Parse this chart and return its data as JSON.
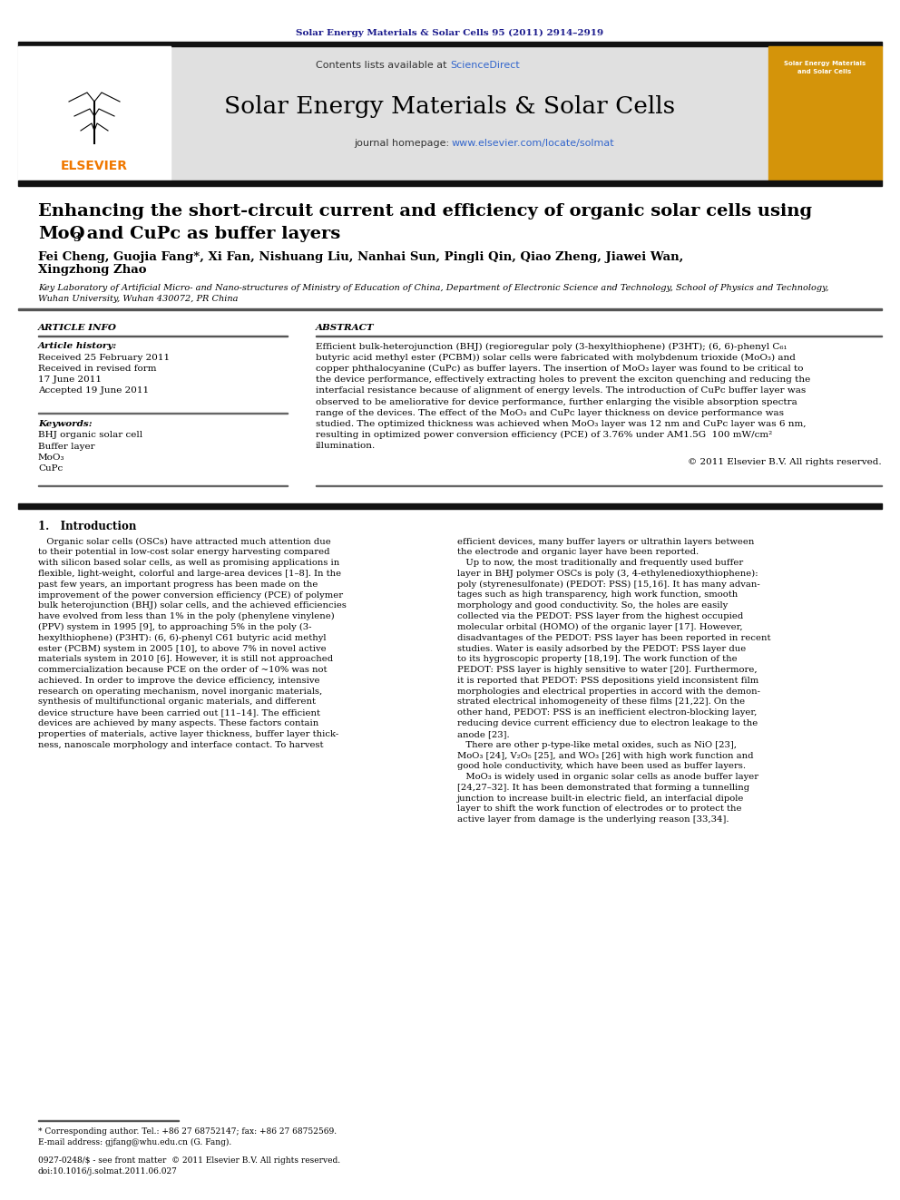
{
  "journal_ref": "Solar Energy Materials & Solar Cells 95 (2011) 2914–2919",
  "journal_ref_color": "#1a1a8c",
  "sciencedirect_color": "#3366cc",
  "homepage_url_color": "#3366cc",
  "journal_name": "Solar Energy Materials & Solar Cells",
  "title_line1": "Enhancing the short-circuit current and efficiency of organic solar cells using",
  "title_line2_pre": "MoO",
  "title_line2_sub": "3",
  "title_line2_post": " and CuPc as buffer layers",
  "authors": "Fei Cheng, Guojia Fang*, Xi Fan, Nishuang Liu, Nanhai Sun, Pingli Qin, Qiao Zheng, Jiawei Wan,",
  "authors_line2": "Xingzhong Zhao",
  "affiliation1": "Key Laboratory of Artificial Micro- and Nano-structures of Ministry of Education of China, Department of Electronic Science and Technology, School of Physics and Technology,",
  "affiliation2": "Wuhan University, Wuhan 430072, PR China",
  "section_article_info": "ARTICLE INFO",
  "section_abstract": "ABSTRACT",
  "article_history_label": "Article history:",
  "received": "Received 25 February 2011",
  "received_revised": "Received in revised form",
  "revised_date": "17 June 2011",
  "accepted": "Accepted 19 June 2011",
  "keywords_label": "Keywords:",
  "keyword1": "BHJ organic solar cell",
  "keyword2": "Buffer layer",
  "keyword3": "MoO₃",
  "keyword4": "CuPc",
  "abstract_lines": [
    "Efficient bulk-heterojunction (BHJ) (regioregular poly (3-hexylthiophene) (P3HT); (6, 6)-phenyl C₆₁",
    "butyric acid methyl ester (PCBM)) solar cells were fabricated with molybdenum trioxide (MoO₃) and",
    "copper phthalocyanine (CuPc) as buffer layers. The insertion of MoO₃ layer was found to be critical to",
    "the device performance, effectively extracting holes to prevent the exciton quenching and reducing the",
    "interfacial resistance because of alignment of energy levels. The introduction of CuPc buffer layer was",
    "observed to be ameliorative for device performance, further enlarging the visible absorption spectra",
    "range of the devices. The effect of the MoO₃ and CuPc layer thickness on device performance was",
    "studied. The optimized thickness was achieved when MoO₃ layer was 12 nm and CuPc layer was 6 nm,",
    "resulting in optimized power conversion efficiency (PCE) of 3.76% under AM1.5G  100 mW/cm²",
    "illumination."
  ],
  "copyright": "© 2011 Elsevier B.V. All rights reserved.",
  "intro_heading": "1.   Introduction",
  "intro_col1": [
    "   Organic solar cells (OSCs) have attracted much attention due",
    "to their potential in low-cost solar energy harvesting compared",
    "with silicon based solar cells, as well as promising applications in",
    "flexible, light-weight, colorful and large-area devices [1–8]. In the",
    "past few years, an important progress has been made on the",
    "improvement of the power conversion efficiency (PCE) of polymer",
    "bulk heterojunction (BHJ) solar cells, and the achieved efficiencies",
    "have evolved from less than 1% in the poly (phenylene vinylene)",
    "(PPV) system in 1995 [9], to approaching 5% in the poly (3-",
    "hexylthiophene) (P3HT): (6, 6)-phenyl C61 butyric acid methyl",
    "ester (PCBM) system in 2005 [10], to above 7% in novel active",
    "materials system in 2010 [6]. However, it is still not approached",
    "commercialization because PCE on the order of ~10% was not",
    "achieved. In order to improve the device efficiency, intensive",
    "research on operating mechanism, novel inorganic materials,",
    "synthesis of multifunctional organic materials, and different",
    "device structure have been carried out [11–14]. The efficient",
    "devices are achieved by many aspects. These factors contain",
    "properties of materials, active layer thickness, buffer layer thick-",
    "ness, nanoscale morphology and interface contact. To harvest"
  ],
  "intro_col2": [
    "efficient devices, many buffer layers or ultrathin layers between",
    "the electrode and organic layer have been reported.",
    "   Up to now, the most traditionally and frequently used buffer",
    "layer in BHJ polymer OSCs is poly (3, 4-ethylenedioxythiophene):",
    "poly (styrenesulfonate) (PEDOT: PSS) [15,16]. It has many advan-",
    "tages such as high transparency, high work function, smooth",
    "morphology and good conductivity. So, the holes are easily",
    "collected via the PEDOT: PSS layer from the highest occupied",
    "molecular orbital (HOMO) of the organic layer [17]. However,",
    "disadvantages of the PEDOT: PSS layer has been reported in recent",
    "studies. Water is easily adsorbed by the PEDOT: PSS layer due",
    "to its hygroscopic property [18,19]. The work function of the",
    "PEDOT: PSS layer is highly sensitive to water [20]. Furthermore,",
    "it is reported that PEDOT: PSS depositions yield inconsistent film",
    "morphologies and electrical properties in accord with the demon-",
    "strated electrical inhomogeneity of these films [21,22]. On the",
    "other hand, PEDOT: PSS is an inefficient electron-blocking layer,",
    "reducing device current efficiency due to electron leakage to the",
    "anode [23].",
    "   There are other p-type-like metal oxides, such as NiO [23],",
    "MoO₃ [24], V₂O₅ [25], and WO₃ [26] with high work function and",
    "good hole conductivity, which have been used as buffer layers.",
    "   MoO₃ is widely used in organic solar cells as anode buffer layer",
    "[24,27–32]. It has been demonstrated that forming a tunnelling",
    "junction to increase built-in electric field, an interfacial dipole",
    "layer to shift the work function of electrodes or to protect the",
    "active layer from damage is the underlying reason [33,34]."
  ],
  "footnote_star": "* Corresponding author. Tel.: +86 27 68752147; fax: +86 27 68752569.",
  "footnote_email": "E-mail address: gjfang@whu.edu.cn (G. Fang).",
  "issn_line": "0927-0248/$ - see front matter  © 2011 Elsevier B.V. All rights reserved.",
  "doi_line": "doi:10.1016/j.solmat.2011.06.027",
  "header_bg_color": "#e0e0e0",
  "thick_bar_color": "#111111",
  "elsevier_orange": "#f07800",
  "cover_bg": "#d4940a"
}
